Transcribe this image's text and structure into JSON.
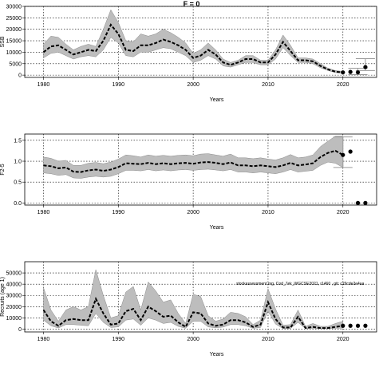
{
  "title": "F = 0",
  "annotation": "stockassessment.org, Cod_7ek_WGCSE2021, r1460 , git: c29cde2e4aa",
  "chart_data": [
    {
      "type": "line",
      "ylabel": "SSB",
      "xlabel": "Years",
      "xlim": [
        1977.5,
        2024.5
      ],
      "ylim": [
        -1000,
        30000
      ],
      "xticks": [
        1980,
        1990,
        2000,
        2010,
        2020
      ],
      "yticks": [
        0,
        5000,
        10000,
        15000,
        20000,
        25000,
        30000
      ],
      "ytick_labels": [
        "0",
        "5000",
        "10000",
        "15000",
        "20000",
        "25000",
        "30000"
      ],
      "grid": true,
      "x": [
        1980,
        1981,
        1982,
        1983,
        1984,
        1985,
        1986,
        1987,
        1988,
        1989,
        1990,
        1991,
        1992,
        1993,
        1994,
        1995,
        1996,
        1997,
        1998,
        1999,
        2000,
        2001,
        2002,
        2003,
        2004,
        2005,
        2006,
        2007,
        2008,
        2009,
        2010,
        2011,
        2012,
        2013,
        2014,
        2015,
        2016,
        2017,
        2018,
        2019,
        2020
      ],
      "series": [
        {
          "role": "estimate",
          "values": [
            10000,
            12500,
            13000,
            11000,
            9000,
            10000,
            11000,
            10500,
            15000,
            22000,
            18000,
            11000,
            10500,
            13000,
            13000,
            14000,
            15500,
            14500,
            13000,
            11000,
            7500,
            8500,
            11000,
            9000,
            5500,
            4500,
            5500,
            7000,
            7000,
            5500,
            5500,
            9000,
            14500,
            10500,
            6500,
            6500,
            6000,
            4000,
            2500,
            1500,
            1200
          ]
        },
        {
          "role": "upper",
          "values": [
            13500,
            17000,
            16500,
            13500,
            11000,
            12500,
            13500,
            12500,
            20000,
            28500,
            23000,
            15000,
            14500,
            18000,
            17000,
            18000,
            20000,
            18500,
            16500,
            14000,
            9500,
            11000,
            14000,
            11000,
            7000,
            5500,
            6500,
            8500,
            8500,
            6500,
            6500,
            11000,
            17500,
            13000,
            7500,
            7500,
            7000,
            5000,
            3000,
            2000,
            1600
          ]
        },
        {
          "role": "lower",
          "values": [
            7500,
            9500,
            10000,
            8500,
            7000,
            8000,
            8500,
            8000,
            11000,
            16500,
            14000,
            8500,
            8000,
            10000,
            10000,
            11000,
            12000,
            11500,
            10000,
            8500,
            5500,
            6500,
            8500,
            7000,
            4000,
            3500,
            4500,
            5500,
            5500,
            4500,
            4500,
            7000,
            12000,
            8500,
            5500,
            5500,
            5000,
            3200,
            2000,
            1100,
            800
          ]
        }
      ],
      "points": {
        "x": [
          2020,
          2021,
          2022,
          2023
        ],
        "y": [
          1200,
          1400,
          1200,
          3500
        ]
      },
      "point_intervals": [
        {
          "x": 2022,
          "low": 200,
          "high": 3000
        },
        {
          "x": 2023,
          "low": 2000,
          "high": 7200
        }
      ]
    },
    {
      "type": "line",
      "ylabel": "F2-5",
      "xlabel": "Years",
      "xlim": [
        1977.5,
        2024.5
      ],
      "ylim": [
        -0.05,
        1.65
      ],
      "xticks": [
        1980,
        1990,
        2000,
        2010,
        2020
      ],
      "yticks": [
        0.0,
        0.5,
        1.0,
        1.5
      ],
      "ytick_labels": [
        "0.0",
        "0.5",
        "1.0",
        "1.5"
      ],
      "grid": true,
      "x": [
        1980,
        1981,
        1982,
        1983,
        1984,
        1985,
        1986,
        1987,
        1988,
        1989,
        1990,
        1991,
        1992,
        1993,
        1994,
        1995,
        1996,
        1997,
        1998,
        1999,
        2000,
        2001,
        2002,
        2003,
        2004,
        2005,
        2006,
        2007,
        2008,
        2009,
        2010,
        2011,
        2012,
        2013,
        2014,
        2015,
        2016,
        2017,
        2018,
        2019,
        2020
      ],
      "series": [
        {
          "role": "estimate",
          "values": [
            0.9,
            0.88,
            0.83,
            0.85,
            0.75,
            0.74,
            0.78,
            0.8,
            0.77,
            0.8,
            0.86,
            0.95,
            0.94,
            0.93,
            0.96,
            0.93,
            0.95,
            0.93,
            0.95,
            0.96,
            0.94,
            0.97,
            0.98,
            0.96,
            0.93,
            0.97,
            0.9,
            0.9,
            0.88,
            0.9,
            0.88,
            0.86,
            0.9,
            0.96,
            0.9,
            0.92,
            0.95,
            1.1,
            1.2,
            1.25,
            1.15
          ]
        },
        {
          "role": "upper",
          "values": [
            1.1,
            1.07,
            1.0,
            1.02,
            0.9,
            0.9,
            0.95,
            0.97,
            0.94,
            0.98,
            1.05,
            1.15,
            1.13,
            1.1,
            1.15,
            1.12,
            1.14,
            1.12,
            1.14,
            1.15,
            1.13,
            1.17,
            1.18,
            1.15,
            1.12,
            1.17,
            1.08,
            1.08,
            1.06,
            1.08,
            1.05,
            1.03,
            1.08,
            1.16,
            1.08,
            1.1,
            1.15,
            1.35,
            1.48,
            1.6,
            1.6
          ]
        },
        {
          "role": "lower",
          "values": [
            0.72,
            0.7,
            0.66,
            0.68,
            0.6,
            0.59,
            0.62,
            0.64,
            0.62,
            0.64,
            0.7,
            0.78,
            0.78,
            0.77,
            0.8,
            0.77,
            0.79,
            0.77,
            0.79,
            0.8,
            0.78,
            0.8,
            0.81,
            0.79,
            0.77,
            0.8,
            0.74,
            0.74,
            0.72,
            0.74,
            0.72,
            0.7,
            0.74,
            0.8,
            0.74,
            0.76,
            0.78,
            0.9,
            0.98,
            0.95,
            0.85
          ]
        }
      ],
      "points": {
        "x": [
          2020,
          2021,
          2022,
          2023
        ],
        "y": [
          1.15,
          1.23,
          0.0,
          0.0
        ]
      },
      "point_intervals": [
        {
          "x": 2020,
          "low": 0.85,
          "high": 1.58
        }
      ]
    },
    {
      "type": "line",
      "ylabel": "Recruits (age 1)",
      "xlabel": "Years",
      "xlim": [
        1977.5,
        2024.5
      ],
      "ylim": [
        -2500,
        60000
      ],
      "xticks": [
        1980,
        1990,
        2000,
        2010,
        2020
      ],
      "yticks": [
        0,
        10000,
        20000,
        30000,
        40000,
        50000
      ],
      "ytick_labels": [
        "0",
        "10000",
        "20000",
        "30000",
        "40000",
        "50000"
      ],
      "grid": true,
      "x": [
        1980,
        1981,
        1982,
        1983,
        1984,
        1985,
        1986,
        1987,
        1988,
        1989,
        1990,
        1991,
        1992,
        1993,
        1994,
        1995,
        1996,
        1997,
        1998,
        1999,
        2000,
        2001,
        2002,
        2003,
        2004,
        2005,
        2006,
        2007,
        2008,
        2009,
        2010,
        2011,
        2012,
        2013,
        2014,
        2015,
        2016,
        2017,
        2018,
        2019,
        2020
      ],
      "series": [
        {
          "role": "estimate",
          "values": [
            17000,
            7000,
            3000,
            8000,
            9000,
            8000,
            8000,
            27000,
            14000,
            4000,
            5000,
            16000,
            18000,
            8000,
            20000,
            16000,
            11000,
            12000,
            6000,
            2000,
            15000,
            14000,
            5000,
            3000,
            4000,
            8000,
            8000,
            6000,
            2000,
            4000,
            24000,
            9000,
            1500,
            1500,
            11000,
            1000,
            2000,
            1000,
            1000,
            2000,
            3000
          ]
        },
        {
          "role": "upper",
          "values": [
            37000,
            17000,
            7000,
            17000,
            20000,
            17000,
            20000,
            53000,
            30000,
            10000,
            12000,
            33000,
            38000,
            17000,
            42000,
            34000,
            24000,
            26000,
            14000,
            5000,
            31000,
            29000,
            12000,
            7000,
            9000,
            15000,
            14000,
            11000,
            4000,
            8000,
            36000,
            18000,
            3500,
            4000,
            17000,
            2500,
            5000,
            2500,
            2500,
            5000,
            7000
          ]
        },
        {
          "role": "lower",
          "values": [
            8000,
            3000,
            1000,
            4000,
            4000,
            3500,
            3000,
            14000,
            6000,
            1500,
            2000,
            8000,
            9000,
            3500,
            10000,
            8000,
            5000,
            6000,
            2500,
            800,
            7000,
            7000,
            2000,
            1200,
            1800,
            4000,
            4000,
            3000,
            800,
            1500,
            16000,
            4500,
            500,
            600,
            6000,
            400,
            800,
            400,
            400,
            800,
            1000
          ]
        }
      ],
      "points": {
        "x": [
          2020,
          2021,
          2022,
          2023
        ],
        "y": [
          3000,
          3000,
          3000,
          3000
        ]
      },
      "point_intervals": []
    }
  ]
}
